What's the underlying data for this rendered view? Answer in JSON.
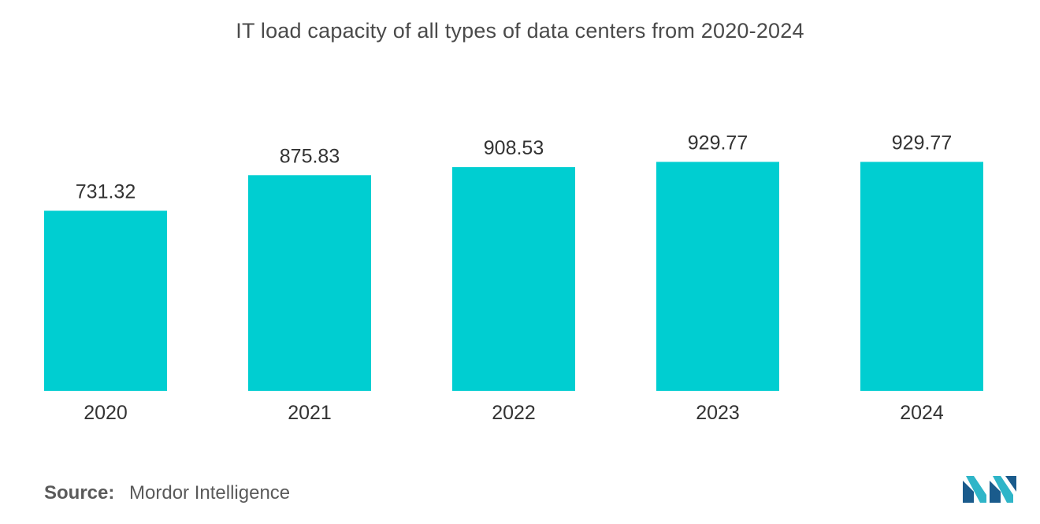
{
  "chart_data": {
    "type": "bar",
    "title": "IT load capacity of all types of data centers from 2020-2024",
    "categories": [
      "2020",
      "2021",
      "2022",
      "2023",
      "2024"
    ],
    "values": [
      731.32,
      875.83,
      908.53,
      929.77,
      929.77
    ],
    "value_labels": [
      "731.32",
      "875.83",
      "908.53",
      "929.77",
      "929.77"
    ],
    "xlabel": "",
    "ylabel": "",
    "ylim": [
      0,
      1000
    ],
    "grid": false,
    "legend": "none",
    "bar_color": "#00ced1"
  },
  "footer": {
    "source_label": "Source:",
    "source_text": "Mordor Intelligence"
  },
  "logo": {
    "icon": "mordor-intelligence-logo-icon",
    "colors": [
      "#1a5b8c",
      "#2fb5c8"
    ]
  }
}
